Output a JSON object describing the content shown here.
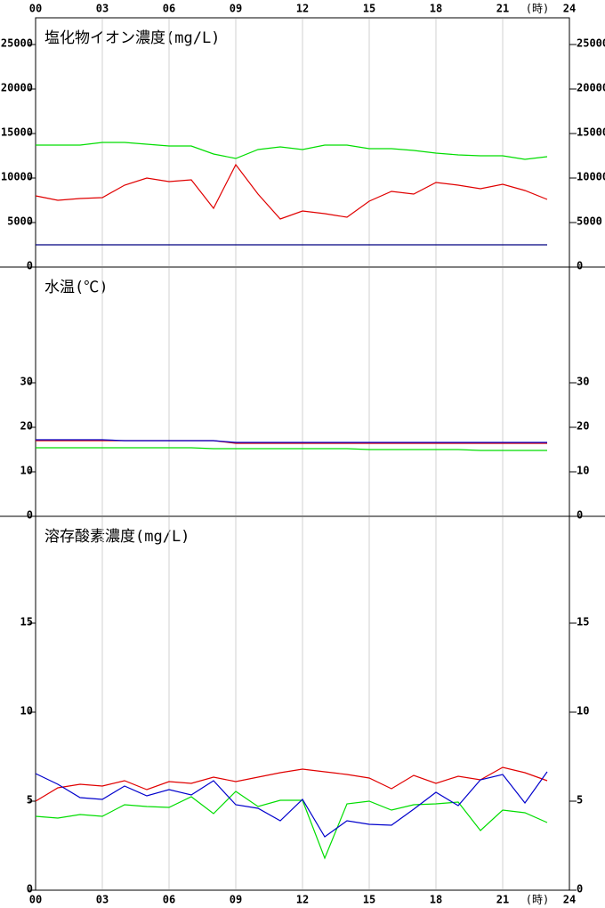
{
  "chart_data": [
    {
      "type": "line",
      "title": "塩化物イオン濃度(mg/L)",
      "x": [
        0,
        1,
        2,
        3,
        4,
        5,
        6,
        7,
        8,
        9,
        10,
        11,
        12,
        13,
        14,
        15,
        16,
        17,
        18,
        19,
        20,
        21,
        22,
        23
      ],
      "xlim": [
        0,
        24
      ],
      "xticks": [
        {
          "value": 0,
          "label": "00"
        },
        {
          "value": 3,
          "label": "03"
        },
        {
          "value": 6,
          "label": "06"
        },
        {
          "value": 9,
          "label": "09"
        },
        {
          "value": 12,
          "label": "12"
        },
        {
          "value": 15,
          "label": "15"
        },
        {
          "value": 18,
          "label": "18"
        },
        {
          "value": 21,
          "label": "21"
        },
        24
      ],
      "xlabel": "(時)",
      "xaxis_position": "top",
      "grid": true,
      "ylim": [
        0,
        28000
      ],
      "yticks": [
        0,
        5000,
        10000,
        15000,
        20000,
        25000
      ],
      "series": [
        {
          "color": "#00dd00",
          "values": [
            13700,
            13700,
            13700,
            14000,
            14000,
            13800,
            13600,
            13600,
            12700,
            12200,
            13200,
            13500,
            13200,
            13700,
            13700,
            13300,
            13300,
            13100,
            12800,
            12600,
            12500,
            12500,
            12100,
            12400
          ]
        },
        {
          "color": "#e00000",
          "values": [
            8000,
            7500,
            7700,
            7800,
            9200,
            10000,
            9600,
            9800,
            6600,
            11500,
            8200,
            5400,
            6300,
            6000,
            5600,
            7400,
            8500,
            8200,
            9500,
            9200,
            8800,
            9300,
            8600,
            7600
          ]
        },
        {
          "color": "#000080",
          "values": [
            2500,
            2500,
            2500,
            2500,
            2500,
            2500,
            2500,
            2500,
            2500,
            2500,
            2500,
            2500,
            2500,
            2500,
            2500,
            2500,
            2500,
            2500,
            2500,
            2500,
            2500,
            2500,
            2500,
            2500
          ]
        }
      ]
    },
    {
      "type": "line",
      "title": "水温(℃)",
      "x": [
        0,
        1,
        2,
        3,
        4,
        5,
        6,
        7,
        8,
        9,
        10,
        11,
        12,
        13,
        14,
        15,
        16,
        17,
        18,
        19,
        20,
        21,
        22,
        23
      ],
      "xlim": [
        0,
        24
      ],
      "grid": true,
      "ylim": [
        0,
        56
      ],
      "yticks": [
        0,
        10,
        20,
        30
      ],
      "series": [
        {
          "color": "#00dd00",
          "values": [
            15.4,
            15.4,
            15.4,
            15.4,
            15.4,
            15.4,
            15.4,
            15.4,
            15.2,
            15.2,
            15.2,
            15.2,
            15.2,
            15.2,
            15.2,
            15.0,
            15.0,
            15.0,
            15.0,
            15.0,
            14.8,
            14.8,
            14.8,
            14.8
          ]
        },
        {
          "color": "#e00000",
          "values": [
            17.0,
            17.0,
            17.0,
            17.0,
            17.0,
            17.0,
            17.0,
            17.0,
            17.0,
            16.4,
            16.4,
            16.4,
            16.4,
            16.4,
            16.4,
            16.4,
            16.4,
            16.4,
            16.4,
            16.4,
            16.4,
            16.4,
            16.4,
            16.4
          ]
        },
        {
          "color": "#0000cc",
          "values": [
            17.2,
            17.2,
            17.2,
            17.2,
            17.0,
            17.0,
            17.0,
            17.0,
            17.0,
            16.6,
            16.6,
            16.6,
            16.6,
            16.6,
            16.6,
            16.6,
            16.6,
            16.6,
            16.6,
            16.6,
            16.6,
            16.6,
            16.6,
            16.6
          ]
        }
      ]
    },
    {
      "type": "line",
      "title": "溶存酸素濃度(mg/L)",
      "x": [
        0,
        1,
        2,
        3,
        4,
        5,
        6,
        7,
        8,
        9,
        10,
        11,
        12,
        13,
        14,
        15,
        16,
        17,
        18,
        19,
        20,
        21,
        22,
        23
      ],
      "xlim": [
        0,
        24
      ],
      "xticks": [
        {
          "value": 0,
          "label": "00"
        },
        {
          "value": 3,
          "label": "03"
        },
        {
          "value": 6,
          "label": "06"
        },
        {
          "value": 9,
          "label": "09"
        },
        {
          "value": 12,
          "label": "12"
        },
        {
          "value": 15,
          "label": "15"
        },
        {
          "value": 18,
          "label": "18"
        },
        {
          "value": 21,
          "label": "21"
        },
        24
      ],
      "xlabel": "(時)",
      "xaxis_position": "bottom",
      "grid": true,
      "ylim": [
        0,
        21
      ],
      "yticks": [
        0,
        5,
        10,
        15
      ],
      "series": [
        {
          "color": "#00dd00",
          "values": [
            4.15,
            4.05,
            4.25,
            4.15,
            4.8,
            4.7,
            4.65,
            5.25,
            4.3,
            5.55,
            4.7,
            5.05,
            5.05,
            1.8,
            4.85,
            5.0,
            4.5,
            4.8,
            4.85,
            4.95,
            3.35,
            4.5,
            4.35,
            3.8
          ]
        },
        {
          "color": "#e00000",
          "values": [
            5.0,
            5.75,
            5.95,
            5.85,
            6.15,
            5.65,
            6.1,
            6.0,
            6.35,
            6.1,
            6.35,
            6.6,
            6.8,
            6.65,
            6.5,
            6.3,
            5.7,
            6.45,
            6.0,
            6.4,
            6.2,
            6.9,
            6.6,
            6.15
          ]
        },
        {
          "color": "#0000cc",
          "values": [
            6.55,
            5.95,
            5.2,
            5.1,
            5.85,
            5.3,
            5.65,
            5.35,
            6.15,
            4.8,
            4.6,
            3.9,
            5.1,
            3.0,
            3.9,
            3.7,
            3.65,
            4.55,
            5.5,
            4.75,
            6.2,
            6.5,
            4.9,
            6.65
          ]
        }
      ]
    }
  ]
}
